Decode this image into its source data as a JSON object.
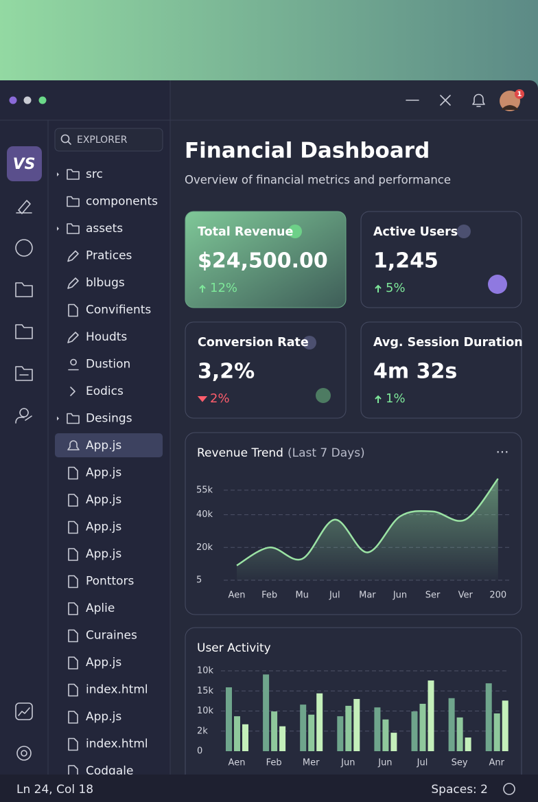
{
  "notification_badge": "1",
  "explorer": {
    "search": "EXPLORER",
    "items": [
      "src",
      "components",
      "assets",
      "Pratices",
      "blbugs",
      "Convifients",
      "Houdts",
      "Dustion",
      "Eodics",
      "Desings",
      "App.js",
      "App.js",
      "App.js",
      "App.js",
      "App.js",
      "Ponttors",
      "Aplie",
      "Curaines",
      "App.js",
      "index.html",
      "App.js",
      "index.html",
      "Codgale"
    ]
  },
  "header": {
    "title": "Financial Dashboard",
    "subtitle": "Overview of financial metrics and performance"
  },
  "cards": [
    {
      "title": "Total Revenue",
      "value": "$24,500.00",
      "change": "12%"
    },
    {
      "title": "Active Users",
      "value": "1,245",
      "change": "5%"
    },
    {
      "title": "Conversion Rate",
      "value": "3,2%",
      "change": "2%"
    },
    {
      "title": "Avg. Session Duration",
      "value": "4m 32s",
      "change": "1%"
    }
  ],
  "chart_data": [
    {
      "type": "line",
      "title": "Revenue Trend",
      "title_note": "(Last 7 Days)",
      "categories": [
        "Aen",
        "Feb",
        "Mu",
        "Jul",
        "Mar",
        "Jun",
        "Ser",
        "Ver",
        "200"
      ],
      "values": [
        9000,
        20000,
        13000,
        37000,
        17000,
        39000,
        42000,
        37000,
        62000
      ],
      "color": "#9be3a4",
      "ylim": [
        0,
        65000
      ],
      "yticks": [
        {
          "value": 55000,
          "label": "55k"
        },
        {
          "value": 40000,
          "label": "40k"
        },
        {
          "value": 20000,
          "label": "20k"
        },
        5
      ],
      "grid": true
    },
    {
      "type": "bar",
      "title": "User Activity",
      "categories": [
        "Aen",
        "Feb",
        "Mer",
        "Jun",
        "Jun",
        "Jul",
        "Sey",
        "Anr"
      ],
      "y_axis_labels": [
        "10k",
        "15k",
        "10k",
        "2k",
        "0"
      ],
      "ylim": [
        0,
        20000
      ],
      "series": [
        {
          "color": "#6fa58c",
          "values": [
            15900,
            19100,
            11600,
            8700,
            10900,
            9900,
            13200,
            16900
          ]
        },
        {
          "color": "#8fc89c",
          "values": [
            8700,
            9900,
            9100,
            11300,
            7900,
            11800,
            8400,
            9400
          ]
        },
        {
          "color": "#c4efba",
          "values": [
            6700,
            6200,
            14400,
            13000,
            4600,
            17600,
            3400,
            12600
          ]
        }
      ]
    }
  ],
  "status": {
    "position": "Ln 24, Col 18",
    "spaces": "Spaces: 2"
  }
}
